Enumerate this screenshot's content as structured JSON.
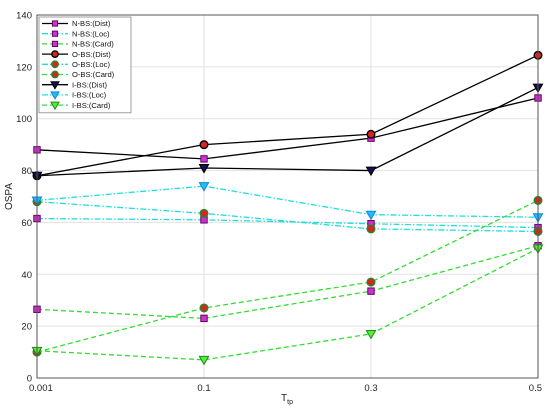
{
  "chart_data": {
    "type": "line",
    "title": "",
    "xlabel": "T",
    "xlabel_subscript": "tp",
    "ylabel": "OSPA",
    "categories": [
      "0.001",
      "0.1",
      "0.3",
      "0.5"
    ],
    "ylim": [
      0,
      140
    ],
    "yticks": [
      "0",
      "20",
      "40",
      "60",
      "80",
      "100",
      "120",
      "140"
    ],
    "grid": true,
    "legend_placement": "top-left",
    "series": [
      {
        "name": "N-BS:(Dist)",
        "values": [
          88,
          84.5,
          92.5,
          108
        ],
        "color": "#000000",
        "dash": "solid",
        "marker": "square",
        "marker_fill": "#cc33cc",
        "marker_stroke": "#660066"
      },
      {
        "name": "N-BS:(Loc)",
        "values": [
          61.5,
          61,
          59.5,
          58
        ],
        "color": "#22dddd",
        "dash": "dashdot",
        "marker": "square",
        "marker_fill": "#cc33cc",
        "marker_stroke": "#660066"
      },
      {
        "name": "N-BS:(Card)",
        "values": [
          26.5,
          23,
          33.5,
          51
        ],
        "color": "#33dd33",
        "dash": "dashed",
        "marker": "square",
        "marker_fill": "#cc33cc",
        "marker_stroke": "#660066"
      },
      {
        "name": "O-BS:(Dist)",
        "values": [
          78,
          90,
          94,
          124.5
        ],
        "color": "#000000",
        "dash": "solid",
        "marker": "circle",
        "marker_fill": "#dd2222",
        "marker_stroke": "#000000"
      },
      {
        "name": "O-BS:(Loc)",
        "values": [
          68,
          63.5,
          57.5,
          56.5
        ],
        "color": "#22dddd",
        "dash": "dashdot",
        "marker": "circle",
        "marker_fill": "#dd2222",
        "marker_stroke": "#228822"
      },
      {
        "name": "O-BS:(Card)",
        "values": [
          10,
          27,
          37,
          68.5
        ],
        "color": "#33dd33",
        "dash": "dashed",
        "marker": "circle",
        "marker_fill": "#dd2222",
        "marker_stroke": "#228822"
      },
      {
        "name": "I-BS:(Dist)",
        "values": [
          78,
          81,
          80,
          112
        ],
        "color": "#000000",
        "dash": "solid",
        "marker": "triangle-down",
        "marker_fill": "#111155",
        "marker_stroke": "#000000"
      },
      {
        "name": "I-BS:(Loc)",
        "values": [
          68.5,
          74,
          63,
          62
        ],
        "color": "#22dddd",
        "dash": "dashdot",
        "marker": "triangle-down",
        "marker_fill": "#22bbff",
        "marker_stroke": "#1188cc"
      },
      {
        "name": "I-BS:(Card)",
        "values": [
          10.5,
          7,
          17,
          50
        ],
        "color": "#33dd33",
        "dash": "dashed",
        "marker": "triangle-down",
        "marker_fill": "#55ee33",
        "marker_stroke": "#228822"
      }
    ]
  }
}
